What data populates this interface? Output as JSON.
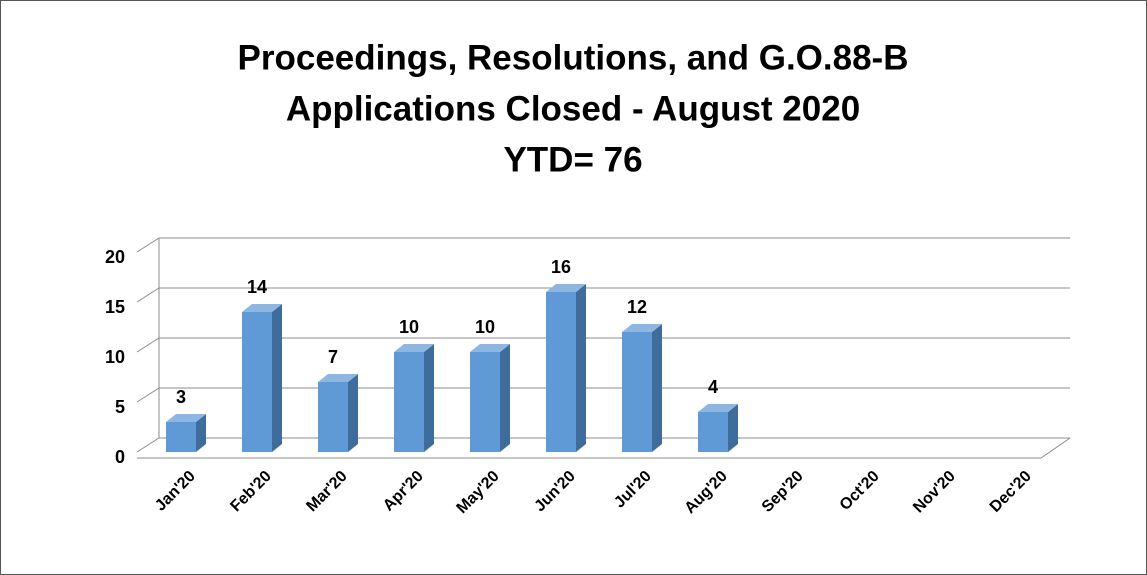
{
  "chart_data": {
    "type": "bar3d",
    "title": [
      "Proceedings, Resolutions, and G.O.88-B",
      "Applications Closed - August 2020",
      "YTD= 76"
    ],
    "categories": [
      "Jan'20",
      "Feb'20",
      "Mar'20",
      "Apr'20",
      "May'20",
      "Jun'20",
      "Jul'20",
      "Aug'20",
      "Sep'20",
      "Oct'20",
      "Nov'20",
      "Dec'20"
    ],
    "values": [
      3,
      14,
      7,
      10,
      10,
      16,
      12,
      4,
      null,
      null,
      null,
      null
    ],
    "color": "#5f9ad6",
    "ylim": [
      0,
      20
    ],
    "yticks": [
      0,
      5,
      10,
      15,
      20
    ],
    "grid": true
  }
}
